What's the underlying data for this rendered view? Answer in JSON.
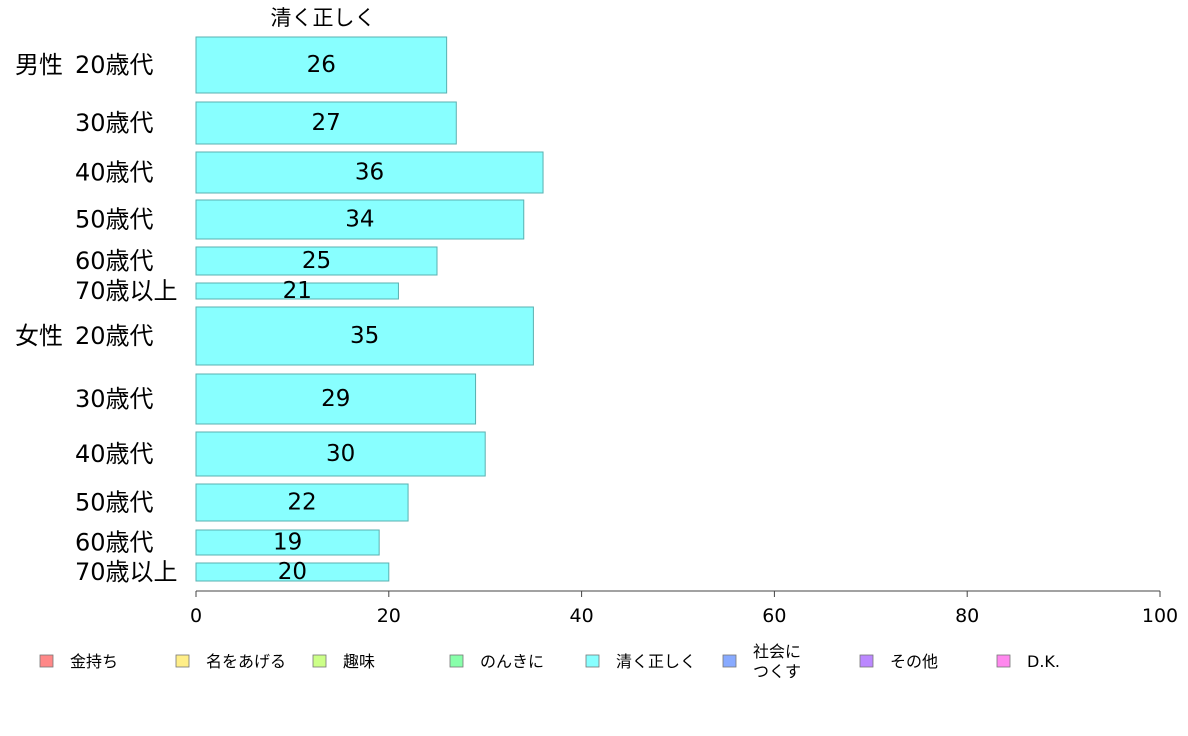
{
  "chart_data": {
    "type": "bar",
    "orientation": "horizontal",
    "title": "清く正しく",
    "xlim": [
      0,
      100
    ],
    "xticks": [
      "0",
      "20",
      "40",
      "60",
      "80",
      "100"
    ],
    "groups": [
      {
        "name": "男性",
        "categories": [
          "20歳代",
          "30歳代",
          "40歳代",
          "50歳代",
          "60歳代",
          "70歳以上"
        ],
        "values": [
          26,
          27,
          36,
          34,
          25,
          21
        ],
        "labels": [
          "26",
          "27",
          "36",
          "34",
          "25",
          "21"
        ]
      },
      {
        "name": "女性",
        "categories": [
          "20歳代",
          "30歳代",
          "40歳代",
          "50歳代",
          "60歳代",
          "70歳以上"
        ],
        "values": [
          35,
          29,
          30,
          22,
          19,
          20
        ],
        "labels": [
          "35",
          "29",
          "30",
          "22",
          "19",
          "20"
        ]
      }
    ],
    "bar_color": "#88ffff",
    "legend_position": "bottom",
    "legend": [
      {
        "label": "金持ち",
        "color": "#ff8888"
      },
      {
        "label": "名をあげる",
        "color": "#ffee88"
      },
      {
        "label": "趣味",
        "color": "#ccff88"
      },
      {
        "label": "のんきに",
        "color": "#88ffaa"
      },
      {
        "label": "清く正しく",
        "color": "#88ffff"
      },
      {
        "label": "社会に\nつくす",
        "color": "#88aaff"
      },
      {
        "label": "その他",
        "color": "#bb88ff"
      },
      {
        "label": "D.K.",
        "color": "#ff88ee"
      }
    ]
  }
}
